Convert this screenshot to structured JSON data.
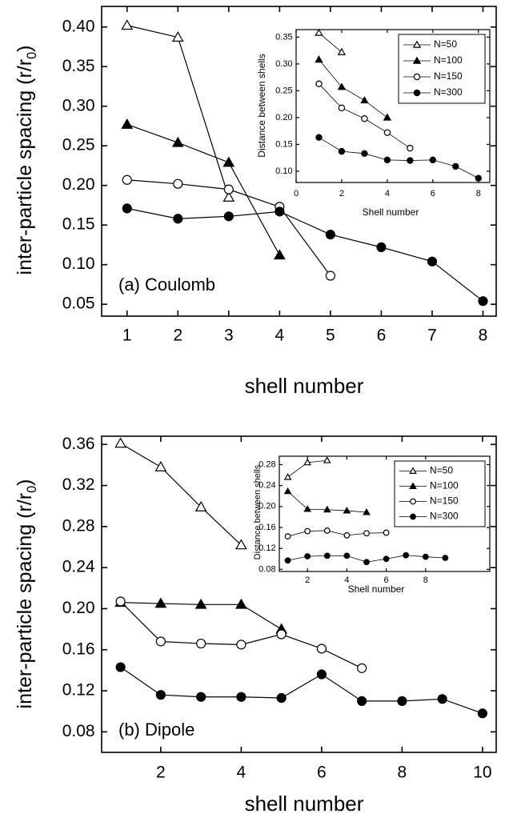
{
  "chart_data": [
    {
      "type": "line",
      "color": "#000000",
      "x_label": "shell number",
      "y_label_parts": [
        "inter-particle spacing (r/r",
        "0",
        ")"
      ],
      "annotation": "(a) Coulomb",
      "xlim": [
        0.5,
        8.26
      ],
      "xticks": [
        1,
        2,
        3,
        4,
        5,
        6,
        7,
        8
      ],
      "ylim": [
        0.035,
        0.426
      ],
      "yticks": [
        0.05,
        {
          "value": 0.1,
          "label": "0.10"
        },
        0.15,
        {
          "value": 0.2,
          "label": "0.20"
        },
        0.25,
        {
          "value": 0.3,
          "label": "0.30"
        },
        0.35,
        {
          "value": 0.4,
          "label": "0.40"
        }
      ],
      "series": [
        {
          "marker": "open-triangle",
          "x": [
            1,
            2,
            3
          ],
          "values": [
            0.402,
            0.387,
            0.185
          ]
        },
        {
          "marker": "filled-triangle",
          "x": [
            1,
            2,
            3,
            4
          ],
          "values": [
            0.277,
            0.254,
            0.229,
            0.112
          ]
        },
        {
          "marker": "open-circle",
          "x": [
            1,
            2,
            3,
            4,
            5
          ],
          "values": [
            0.207,
            0.202,
            0.195,
            0.173,
            0.086
          ]
        },
        {
          "marker": "filled-circle",
          "x": [
            1,
            2,
            3,
            4,
            5,
            6,
            7,
            8
          ],
          "values": [
            0.171,
            0.158,
            0.161,
            0.167,
            0.138,
            0.122,
            0.104,
            0.054
          ]
        }
      ]
    },
    {
      "type": "line",
      "color": "#000000",
      "x_label": "Shell number",
      "y_label": "Distance between shells",
      "legend": "upper right",
      "xlim": [
        0,
        8.5
      ],
      "xticks": [
        0,
        2,
        4,
        6,
        8
      ],
      "ylim": [
        0.079,
        0.364
      ],
      "yticks": [
        {
          "value": 0.1,
          "label": "0.10"
        },
        0.15,
        {
          "value": 0.2,
          "label": "0.20"
        },
        0.25,
        {
          "value": 0.3,
          "label": "0.30"
        },
        0.35
      ],
      "series": [
        {
          "name": "N=50",
          "marker": "open-triangle",
          "x": [
            1,
            2
          ],
          "values": [
            0.358,
            0.322
          ]
        },
        {
          "name": "N=100",
          "marker": "filled-triangle",
          "x": [
            1,
            2,
            3,
            4
          ],
          "values": [
            0.308,
            0.257,
            0.232,
            0.2
          ]
        },
        {
          "name": "N=150",
          "marker": "open-circle",
          "x": [
            1,
            2,
            3,
            4,
            5
          ],
          "values": [
            0.263,
            0.218,
            0.198,
            0.172,
            0.143
          ]
        },
        {
          "name": "N=300",
          "marker": "filled-circle",
          "x": [
            1,
            2,
            3,
            4,
            5,
            6,
            7,
            8
          ],
          "values": [
            0.163,
            0.137,
            0.133,
            0.121,
            0.12,
            0.121,
            0.109,
            0.087
          ]
        }
      ]
    },
    {
      "type": "line",
      "color": "#000000",
      "x_label": "shell number",
      "y_label_parts": [
        "inter-particle spacing (r/r",
        "0",
        ")"
      ],
      "annotation": "(b)  Dipole",
      "xlim": [
        0.53,
        10.34
      ],
      "xticks": [
        2,
        4,
        6,
        8,
        10
      ],
      "ylim": [
        0.06,
        0.368
      ],
      "yticks": [
        0.08,
        0.12,
        0.16,
        {
          "value": 0.2,
          "label": "0.20"
        },
        0.24,
        0.28,
        0.32,
        0.36
      ],
      "series": [
        {
          "marker": "open-triangle",
          "x": [
            1,
            2,
            3,
            4
          ],
          "values": [
            0.361,
            0.338,
            0.299,
            0.262
          ]
        },
        {
          "marker": "filled-triangle",
          "x": [
            1,
            2,
            3,
            4,
            5
          ],
          "values": [
            0.206,
            0.205,
            0.204,
            0.204,
            0.18
          ]
        },
        {
          "marker": "open-circle",
          "x": [
            1,
            2,
            3,
            4,
            5,
            6,
            7
          ],
          "values": [
            0.207,
            0.168,
            0.166,
            0.165,
            0.175,
            0.161,
            0.142
          ]
        },
        {
          "marker": "filled-circle",
          "x": [
            1,
            2,
            3,
            4,
            5,
            6,
            7,
            8,
            9,
            10
          ],
          "values": [
            0.143,
            0.116,
            0.114,
            0.114,
            0.113,
            0.136,
            0.11,
            0.11,
            0.112,
            0.098
          ]
        }
      ]
    },
    {
      "type": "line",
      "color": "#000000",
      "x_label": "Shell number",
      "y_label": "Distance between shells",
      "legend": "upper right",
      "xlim": [
        0.57,
        11.26
      ],
      "xticks": [
        2,
        4,
        6,
        8
      ],
      "ylim": [
        0.076,
        0.296
      ],
      "yticks": [
        0.08,
        0.12,
        0.16,
        {
          "value": 0.2,
          "label": "0.20"
        },
        0.24,
        0.28
      ],
      "series": [
        {
          "name": "N=50",
          "marker": "open-triangle",
          "x": [
            1,
            2,
            3
          ],
          "values": [
            0.256,
            0.284,
            0.288
          ]
        },
        {
          "name": "N=100",
          "marker": "filled-triangle",
          "x": [
            1,
            2,
            3,
            4,
            5
          ],
          "values": [
            0.229,
            0.195,
            0.194,
            0.192,
            0.189
          ]
        },
        {
          "name": "N=150",
          "marker": "open-circle",
          "x": [
            1,
            2,
            3,
            4,
            5,
            6
          ],
          "values": [
            0.143,
            0.153,
            0.154,
            0.145,
            0.149,
            0.15
          ]
        },
        {
          "name": "N=300",
          "marker": "filled-circle",
          "x": [
            1,
            2,
            3,
            4,
            5,
            6,
            7,
            8,
            9
          ],
          "values": [
            0.097,
            0.105,
            0.106,
            0.106,
            0.094,
            0.1,
            0.107,
            0.104,
            0.102
          ]
        }
      ]
    }
  ]
}
